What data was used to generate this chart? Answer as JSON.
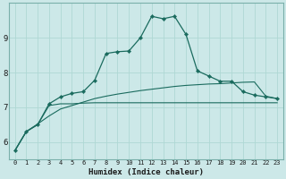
{
  "xlabel": "Humidex (Indice chaleur)",
  "background_color": "#cce8e8",
  "grid_color": "#b0d8d8",
  "line_color": "#1a6b5e",
  "x_values": [
    0,
    1,
    2,
    3,
    4,
    5,
    6,
    7,
    8,
    9,
    10,
    11,
    12,
    13,
    14,
    15,
    16,
    17,
    18,
    19,
    20,
    21,
    22,
    23
  ],
  "line_main_y": [
    5.75,
    6.3,
    6.5,
    7.1,
    7.3,
    7.4,
    7.45,
    7.78,
    8.55,
    8.6,
    8.62,
    9.0,
    9.62,
    9.55,
    9.62,
    9.1,
    8.05,
    7.9,
    7.75,
    7.75,
    7.45,
    7.35,
    7.3,
    7.25
  ],
  "line_flat_y": [
    5.75,
    6.3,
    6.5,
    7.05,
    7.1,
    7.1,
    7.12,
    7.13,
    7.13,
    7.13,
    7.13,
    7.13,
    7.13,
    7.13,
    7.13,
    7.13,
    7.13,
    7.13,
    7.13,
    7.13,
    7.13,
    7.13,
    7.13,
    7.13
  ],
  "line_rise_y": [
    5.75,
    6.3,
    6.52,
    6.75,
    6.95,
    7.05,
    7.15,
    7.25,
    7.32,
    7.38,
    7.43,
    7.48,
    7.52,
    7.56,
    7.6,
    7.63,
    7.65,
    7.67,
    7.68,
    7.7,
    7.72,
    7.73,
    7.32,
    7.25
  ],
  "ylim": [
    5.5,
    10.0
  ],
  "xlim": [
    -0.5,
    23.5
  ],
  "yticks": [
    6,
    7,
    8,
    9
  ],
  "xticks": [
    0,
    1,
    2,
    3,
    4,
    5,
    6,
    7,
    8,
    9,
    10,
    11,
    12,
    13,
    14,
    15,
    16,
    17,
    18,
    19,
    20,
    21,
    22,
    23
  ]
}
